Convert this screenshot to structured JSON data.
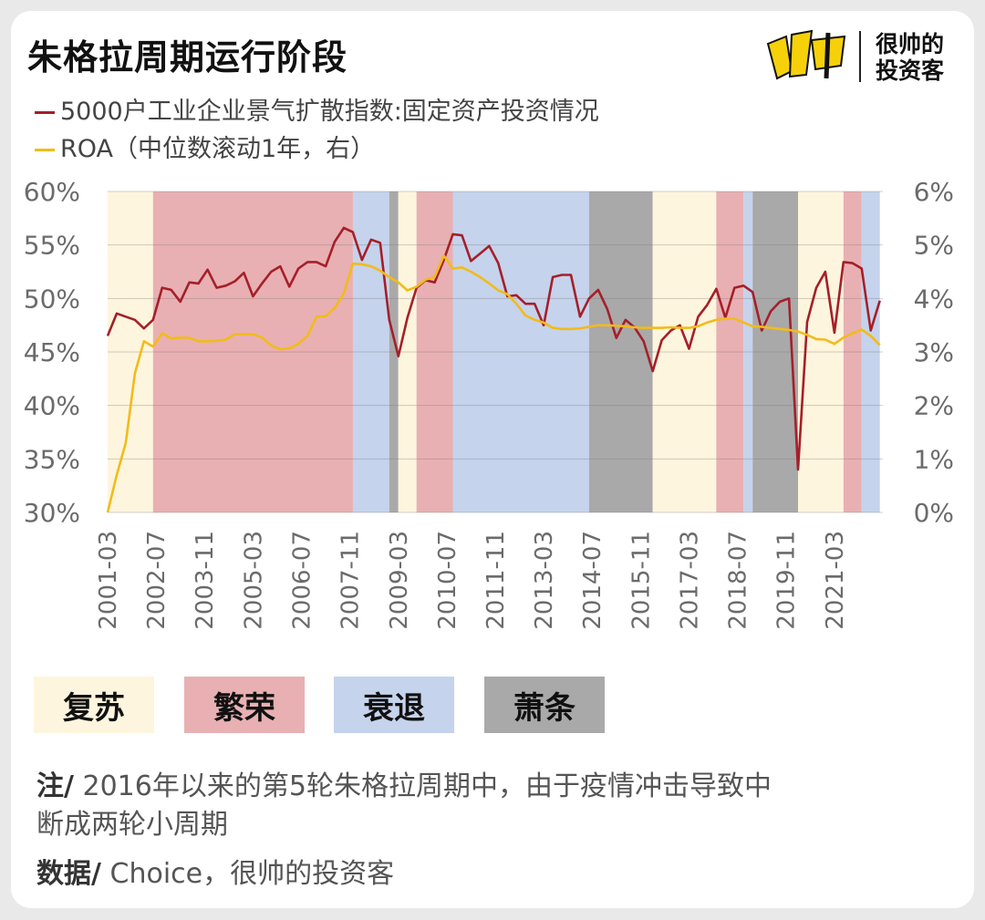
{
  "header": {
    "title": "朱格拉周期运行阶段",
    "logo_text": [
      "很帅的",
      "投资客"
    ],
    "logo_mark": "ル巾"
  },
  "colors": {
    "recovery": "#fdf5dd",
    "boom": "#e8b0b2",
    "recession": "#c5d3ec",
    "depression": "#a9a9a9",
    "index_line": "#a51f2a",
    "roa_line": "#f2bb1a"
  },
  "chart_data": {
    "type": "line",
    "legend": [
      {
        "name": "5000户工业企业景气扩散指数:固定资产投资情况",
        "color": "#a51f2a"
      },
      {
        "name": "ROA（中位数滚动1年，右）",
        "color": "#f2bb1a"
      }
    ],
    "x_ticks": [
      "2001-03",
      "2002-07",
      "2003-11",
      "2005-03",
      "2006-07",
      "2007-11",
      "2009-03",
      "2010-07",
      "2011-11",
      "2013-03",
      "2014-07",
      "2015-11",
      "2017-03",
      "2018-07",
      "2019-11",
      "2021-03"
    ],
    "y_left": {
      "ticks": [
        "30%",
        "35%",
        "40%",
        "45%",
        "50%",
        "55%",
        "60%"
      ],
      "ylim": [
        30,
        60
      ]
    },
    "y_right": {
      "ticks": [
        "0%",
        "1%",
        "2%",
        "3%",
        "4%",
        "5%",
        "6%"
      ],
      "ylim": [
        0,
        6
      ]
    },
    "phases": [
      {
        "phase": "recovery",
        "start": "2001-03",
        "end": "2002-06"
      },
      {
        "phase": "boom",
        "start": "2002-06",
        "end": "2007-12"
      },
      {
        "phase": "recession",
        "start": "2007-12",
        "end": "2008-12"
      },
      {
        "phase": "depression",
        "start": "2008-12",
        "end": "2009-03"
      },
      {
        "phase": "recovery",
        "start": "2009-03",
        "end": "2009-09"
      },
      {
        "phase": "boom",
        "start": "2009-09",
        "end": "2010-09"
      },
      {
        "phase": "recession",
        "start": "2010-09",
        "end": "2014-06"
      },
      {
        "phase": "depression",
        "start": "2014-06",
        "end": "2016-03"
      },
      {
        "phase": "recovery",
        "start": "2016-03",
        "end": "2017-12"
      },
      {
        "phase": "boom",
        "start": "2017-12",
        "end": "2018-09"
      },
      {
        "phase": "recession",
        "start": "2018-09",
        "end": "2018-12"
      },
      {
        "phase": "depression",
        "start": "2018-12",
        "end": "2020-03"
      },
      {
        "phase": "recovery",
        "start": "2020-03",
        "end": "2021-06"
      },
      {
        "phase": "boom",
        "start": "2021-06",
        "end": "2021-12"
      },
      {
        "phase": "recession",
        "start": "2021-12",
        "end": "2022-06"
      }
    ],
    "series": [
      {
        "name": "5000户工业企业景气扩散指数:固定资产投资情况",
        "axis": "left",
        "x": [
          "2001-03",
          "2001-06",
          "2001-09",
          "2001-12",
          "2002-03",
          "2002-06",
          "2002-09",
          "2002-12",
          "2003-03",
          "2003-06",
          "2003-09",
          "2003-12",
          "2004-03",
          "2004-06",
          "2004-09",
          "2004-12",
          "2005-03",
          "2005-06",
          "2005-09",
          "2005-12",
          "2006-03",
          "2006-06",
          "2006-09",
          "2006-12",
          "2007-03",
          "2007-06",
          "2007-09",
          "2007-12",
          "2008-03",
          "2008-06",
          "2008-09",
          "2008-12",
          "2009-03",
          "2009-06",
          "2009-09",
          "2009-12",
          "2010-03",
          "2010-06",
          "2010-09",
          "2010-12",
          "2011-03",
          "2011-06",
          "2011-09",
          "2011-12",
          "2012-03",
          "2012-06",
          "2012-09",
          "2012-12",
          "2013-03",
          "2013-06",
          "2013-09",
          "2013-12",
          "2014-03",
          "2014-06",
          "2014-09",
          "2014-12",
          "2015-03",
          "2015-06",
          "2015-09",
          "2015-12",
          "2016-03",
          "2016-06",
          "2016-09",
          "2016-12",
          "2017-03",
          "2017-06",
          "2017-09",
          "2017-12",
          "2018-03",
          "2018-06",
          "2018-09",
          "2018-12",
          "2019-03",
          "2019-06",
          "2019-09",
          "2019-12",
          "2020-03",
          "2020-06",
          "2020-09",
          "2020-12",
          "2021-03",
          "2021-06",
          "2021-09",
          "2021-12",
          "2022-03",
          "2022-06"
        ],
        "values": [
          46.5,
          48.6,
          48.3,
          48.0,
          47.2,
          48.0,
          51.0,
          50.8,
          49.7,
          51.5,
          51.4,
          52.7,
          51.0,
          51.2,
          51.6,
          52.4,
          50.2,
          51.4,
          52.5,
          53.0,
          51.1,
          52.8,
          53.4,
          53.4,
          53.0,
          55.3,
          56.6,
          56.2,
          53.6,
          55.5,
          55.2,
          48.0,
          44.6,
          48.2,
          51.0,
          51.7,
          51.5,
          53.6,
          56.0,
          55.9,
          53.5,
          54.2,
          54.9,
          53.3,
          50.2,
          50.3,
          49.5,
          49.5,
          47.5,
          52.0,
          52.2,
          52.2,
          48.3,
          50.0,
          50.8,
          49.0,
          46.3,
          48.0,
          47.3,
          46.0,
          43.2,
          46.1,
          47.0,
          47.5,
          45.3,
          48.3,
          49.4,
          50.9,
          48.2,
          51.0,
          51.2,
          50.6,
          47.0,
          48.8,
          49.7,
          50.0,
          34.0,
          47.8,
          51.0,
          52.5,
          46.8,
          53.4,
          53.3,
          52.8,
          47.0,
          49.8
        ]
      },
      {
        "name": "ROA（中位数滚动1年，右）",
        "axis": "right",
        "x": [
          "2001-03",
          "2001-06",
          "2001-09",
          "2001-12",
          "2002-03",
          "2002-06",
          "2002-09",
          "2002-12",
          "2003-03",
          "2003-06",
          "2003-09",
          "2003-12",
          "2004-03",
          "2004-06",
          "2004-09",
          "2004-12",
          "2005-03",
          "2005-06",
          "2005-09",
          "2005-12",
          "2006-03",
          "2006-06",
          "2006-09",
          "2006-12",
          "2007-03",
          "2007-06",
          "2007-09",
          "2007-12",
          "2008-03",
          "2008-06",
          "2008-09",
          "2008-12",
          "2009-03",
          "2009-06",
          "2009-09",
          "2009-12",
          "2010-03",
          "2010-06",
          "2010-09",
          "2010-12",
          "2011-03",
          "2011-06",
          "2011-09",
          "2011-12",
          "2012-03",
          "2012-06",
          "2012-09",
          "2012-12",
          "2013-03",
          "2013-06",
          "2013-09",
          "2013-12",
          "2014-03",
          "2014-06",
          "2014-09",
          "2014-12",
          "2015-03",
          "2015-06",
          "2015-09",
          "2015-12",
          "2016-03",
          "2016-06",
          "2016-09",
          "2016-12",
          "2017-03",
          "2017-06",
          "2017-09",
          "2017-12",
          "2018-03",
          "2018-06",
          "2018-09",
          "2018-12",
          "2019-03",
          "2019-06",
          "2019-09",
          "2019-12",
          "2020-03",
          "2020-06",
          "2020-09",
          "2020-12",
          "2021-03",
          "2021-06",
          "2021-09",
          "2021-12",
          "2022-03",
          "2022-06"
        ],
        "values": [
          0.0,
          0.7,
          1.3,
          2.6,
          3.2,
          3.1,
          3.35,
          3.25,
          3.27,
          3.26,
          3.2,
          3.2,
          3.21,
          3.23,
          3.33,
          3.33,
          3.33,
          3.27,
          3.12,
          3.05,
          3.07,
          3.15,
          3.3,
          3.66,
          3.67,
          3.82,
          4.1,
          4.65,
          4.64,
          4.6,
          4.52,
          4.4,
          4.3,
          4.15,
          4.22,
          4.35,
          4.4,
          4.8,
          4.56,
          4.58,
          4.5,
          4.4,
          4.28,
          4.15,
          4.08,
          3.9,
          3.68,
          3.6,
          3.55,
          3.45,
          3.43,
          3.43,
          3.44,
          3.47,
          3.5,
          3.5,
          3.49,
          3.48,
          3.46,
          3.45,
          3.45,
          3.45,
          3.46,
          3.45,
          3.45,
          3.48,
          3.55,
          3.6,
          3.62,
          3.62,
          3.55,
          3.48,
          3.47,
          3.45,
          3.43,
          3.41,
          3.38,
          3.32,
          3.24,
          3.23,
          3.15,
          3.27,
          3.35,
          3.42,
          3.3,
          3.13
        ]
      }
    ]
  },
  "phase_legend": [
    {
      "key": "recovery",
      "label": "复苏"
    },
    {
      "key": "boom",
      "label": "繁荣"
    },
    {
      "key": "recession",
      "label": "衰退"
    },
    {
      "key": "depression",
      "label": "萧条"
    }
  ],
  "notes": {
    "note_prefix": "注/",
    "note_text_line1": " 2016年以来的第5轮朱格拉周期中，由于疫情冲击导致中",
    "note_text_line2": "断成两轮小周期",
    "source_prefix": "数据/",
    "source_text": " Choice，很帅的投资客"
  }
}
